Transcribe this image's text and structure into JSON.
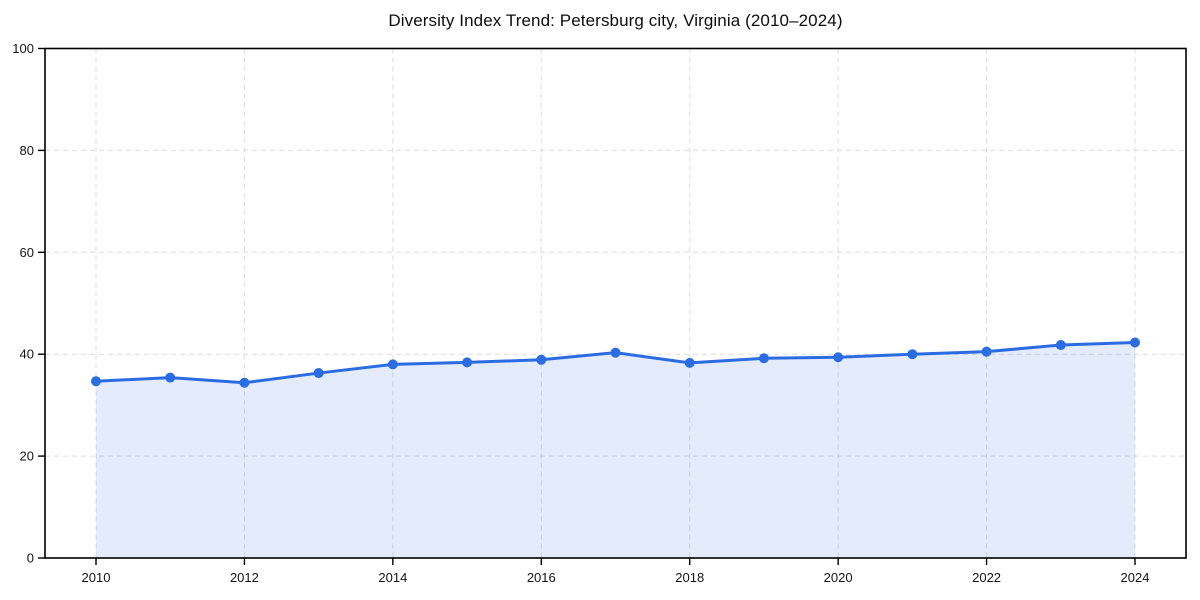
{
  "chart_data": {
    "type": "line",
    "title": "Diversity Index Trend: Petersburg city, Virginia (2010–2024)",
    "x": [
      2010,
      2011,
      2012,
      2013,
      2014,
      2015,
      2016,
      2017,
      2018,
      2019,
      2020,
      2021,
      2022,
      2023,
      2024
    ],
    "values": [
      34.7,
      35.4,
      34.4,
      36.3,
      38.0,
      38.4,
      38.9,
      40.3,
      38.3,
      39.2,
      39.4,
      40.0,
      40.5,
      41.8,
      42.3
    ],
    "xlabel": "",
    "ylabel": "",
    "ylim": [
      0,
      100
    ],
    "yticks": [
      0,
      20,
      40,
      60,
      80,
      100
    ],
    "xticks": [
      2010,
      2012,
      2014,
      2016,
      2018,
      2020,
      2022,
      2024
    ],
    "grid": true,
    "legend": "none",
    "style": {
      "line_color": "#2b6ce3",
      "marker_color": "#2b6ce3",
      "fill_color": "rgba(43,108,227,0.13)",
      "grid_color": "#dcdcdc",
      "frame_color": "#000000",
      "background": "#ffffff",
      "title_color": "#0d0d0d"
    }
  }
}
